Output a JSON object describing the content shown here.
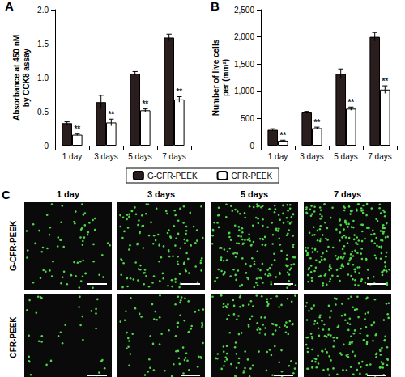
{
  "chart_data": [
    {
      "type": "bar",
      "title": "A",
      "y_label": "Absorbance at 450 nM\nby CCK8 assay",
      "categories": [
        "1 day",
        "3 days",
        "5 days",
        "7 days"
      ],
      "series": [
        {
          "name": "G-CFR-PEEK",
          "color": "#2a1d1d",
          "values": [
            0.33,
            0.64,
            1.06,
            1.59
          ],
          "errors": [
            0.02,
            0.1,
            0.03,
            0.05
          ]
        },
        {
          "name": "CFR-PEEK",
          "color": "#ffffff",
          "values": [
            0.16,
            0.34,
            0.52,
            0.68
          ],
          "errors": [
            0.01,
            0.05,
            0.02,
            0.04
          ],
          "annotations": [
            "**",
            "**",
            "**",
            "**"
          ]
        }
      ],
      "ylim": [
        0,
        2
      ],
      "yticks": [
        0,
        0.5,
        {
          "value": 1,
          "label": "1.0"
        },
        1.5,
        {
          "value": 2,
          "label": "2.0"
        }
      ],
      "grid": false,
      "legend": "bottom"
    },
    {
      "type": "bar",
      "title": "B",
      "y_label": "Number of live cells\nper (mm²)",
      "categories": [
        "1 day",
        "3 days",
        "5 days",
        "7 days"
      ],
      "series": [
        {
          "name": "G-CFR-PEEK",
          "color": "#2a1d1d",
          "values": [
            290,
            610,
            1320,
            2000
          ],
          "errors": [
            20,
            20,
            90,
            80
          ]
        },
        {
          "name": "CFR-PEEK",
          "color": "#ffffff",
          "values": [
            90,
            320,
            680,
            1030
          ],
          "errors": [
            10,
            20,
            30,
            70
          ],
          "annotations": [
            "**",
            "**",
            "**",
            "**"
          ]
        }
      ],
      "ylim": [
        0,
        2500
      ],
      "yticks": [
        0,
        500,
        {
          "value": 1000,
          "label": "1,000"
        },
        {
          "value": 1500,
          "label": "1,500"
        },
        {
          "value": 2000,
          "label": "2,000"
        },
        {
          "value": 2500,
          "label": "2,500"
        }
      ],
      "grid": false
    }
  ],
  "panel_c": {
    "title": "C",
    "columns": [
      "1 day",
      "3 days",
      "5 days",
      "7 days"
    ],
    "rows": [
      "G-CFR-PEEK",
      "CFR-PEEK"
    ]
  }
}
